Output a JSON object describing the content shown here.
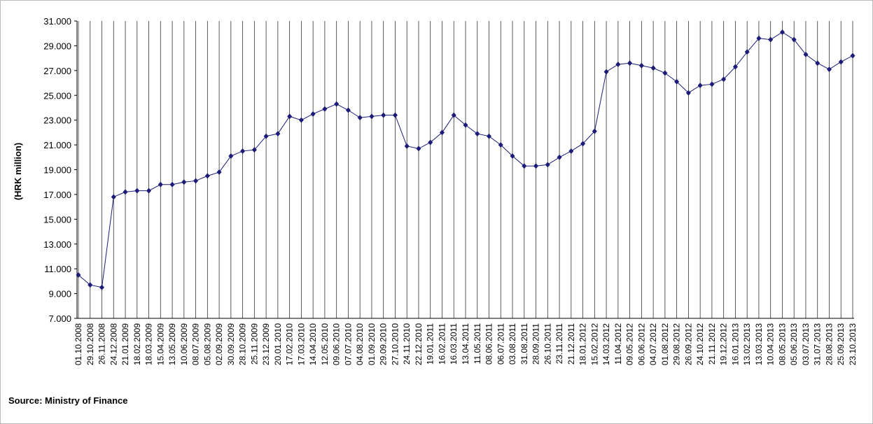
{
  "chart_data": {
    "type": "line",
    "y_label": "(HRK million)",
    "source": "Source: Ministry  of Finance",
    "categories": [
      "01.10.2008",
      "29.10.2008",
      "26.11.2008",
      "24.12.2008",
      "21.01.2009",
      "18.02.2009",
      "18.03.2009",
      "15.04.2009",
      "13.05.2009",
      "10.06.2009",
      "08.07.2009",
      "05.08.2009",
      "02.09.2009",
      "30.09.2009",
      "28.10.2009",
      "25.11.2009",
      "23.12.2009",
      "20.01.2010",
      "17.02.2010",
      "17.03.2010",
      "14.04.2010",
      "12.05.2010",
      "09.06.2010",
      "07.07.2010",
      "04.08.2010",
      "01.09.2010",
      "29.09.2010",
      "27.10.2010",
      "24.11.2010",
      "22.12.2010",
      "19.01.2011",
      "16.02.2011",
      "16.03.2011",
      "13.04.2011",
      "11.05.2011",
      "08.06.2011",
      "06.07.2011",
      "03.08.2011",
      "31.08.2011",
      "28.09.2011",
      "26.10.2011",
      "23.11.2011",
      "21.12.2011",
      "18.01.2012",
      "15.02.2012",
      "14.03.2012",
      "11.04.2012",
      "09.05.2012",
      "06.06.2012",
      "04.07.2012",
      "01.08.2012",
      "29.08.2012",
      "26.09.2012",
      "24.10.2012",
      "21.11.2012",
      "19.12.2012",
      "16.01.2013",
      "13.02.2013",
      "13.03.2013",
      "10.04.2013",
      "08.05.2013",
      "05.06.2013",
      "03.07.2013",
      "31.07.2013",
      "28.08.2013",
      "25.09.2013",
      "23.10.2013"
    ],
    "series": [
      {
        "color": "#1c1c78",
        "values": [
          10500,
          9700,
          9500,
          16800,
          17200,
          17300,
          17300,
          17800,
          17800,
          18000,
          18100,
          18500,
          18800,
          20100,
          20500,
          20600,
          21700,
          21900,
          23300,
          23000,
          23500,
          23900,
          24300,
          23800,
          23200,
          23300,
          23400,
          23400,
          20900,
          20700,
          21200,
          22000,
          23400,
          22600,
          21900,
          21700,
          21000,
          20100,
          19300,
          19300,
          19400,
          20000,
          20500,
          21100,
          22100,
          26900,
          27500,
          27600,
          27400,
          27200,
          26800,
          26100,
          25200,
          25800,
          25900,
          26300,
          27300,
          28500,
          29600,
          29500,
          30100,
          29500,
          28300,
          27600,
          27100,
          27700,
          28200
        ]
      }
    ],
    "ylim": [
      7000,
      31000
    ],
    "yticks": [
      {
        "value": 7000,
        "label": "7.000"
      },
      {
        "value": 9000,
        "label": "9.000"
      },
      {
        "value": 11000,
        "label": "11.000"
      },
      {
        "value": 13000,
        "label": "13.000"
      },
      {
        "value": 15000,
        "label": "15.000"
      },
      {
        "value": 17000,
        "label": "17.000"
      },
      {
        "value": 19000,
        "label": "19.000"
      },
      {
        "value": 21000,
        "label": "21.000"
      },
      {
        "value": 23000,
        "label": "23.000"
      },
      {
        "value": 25000,
        "label": "25.000"
      },
      {
        "value": 27000,
        "label": "27.000"
      },
      {
        "value": 29000,
        "label": "29.000"
      },
      {
        "value": 31000,
        "label": "31.000"
      }
    ],
    "grid": true
  }
}
